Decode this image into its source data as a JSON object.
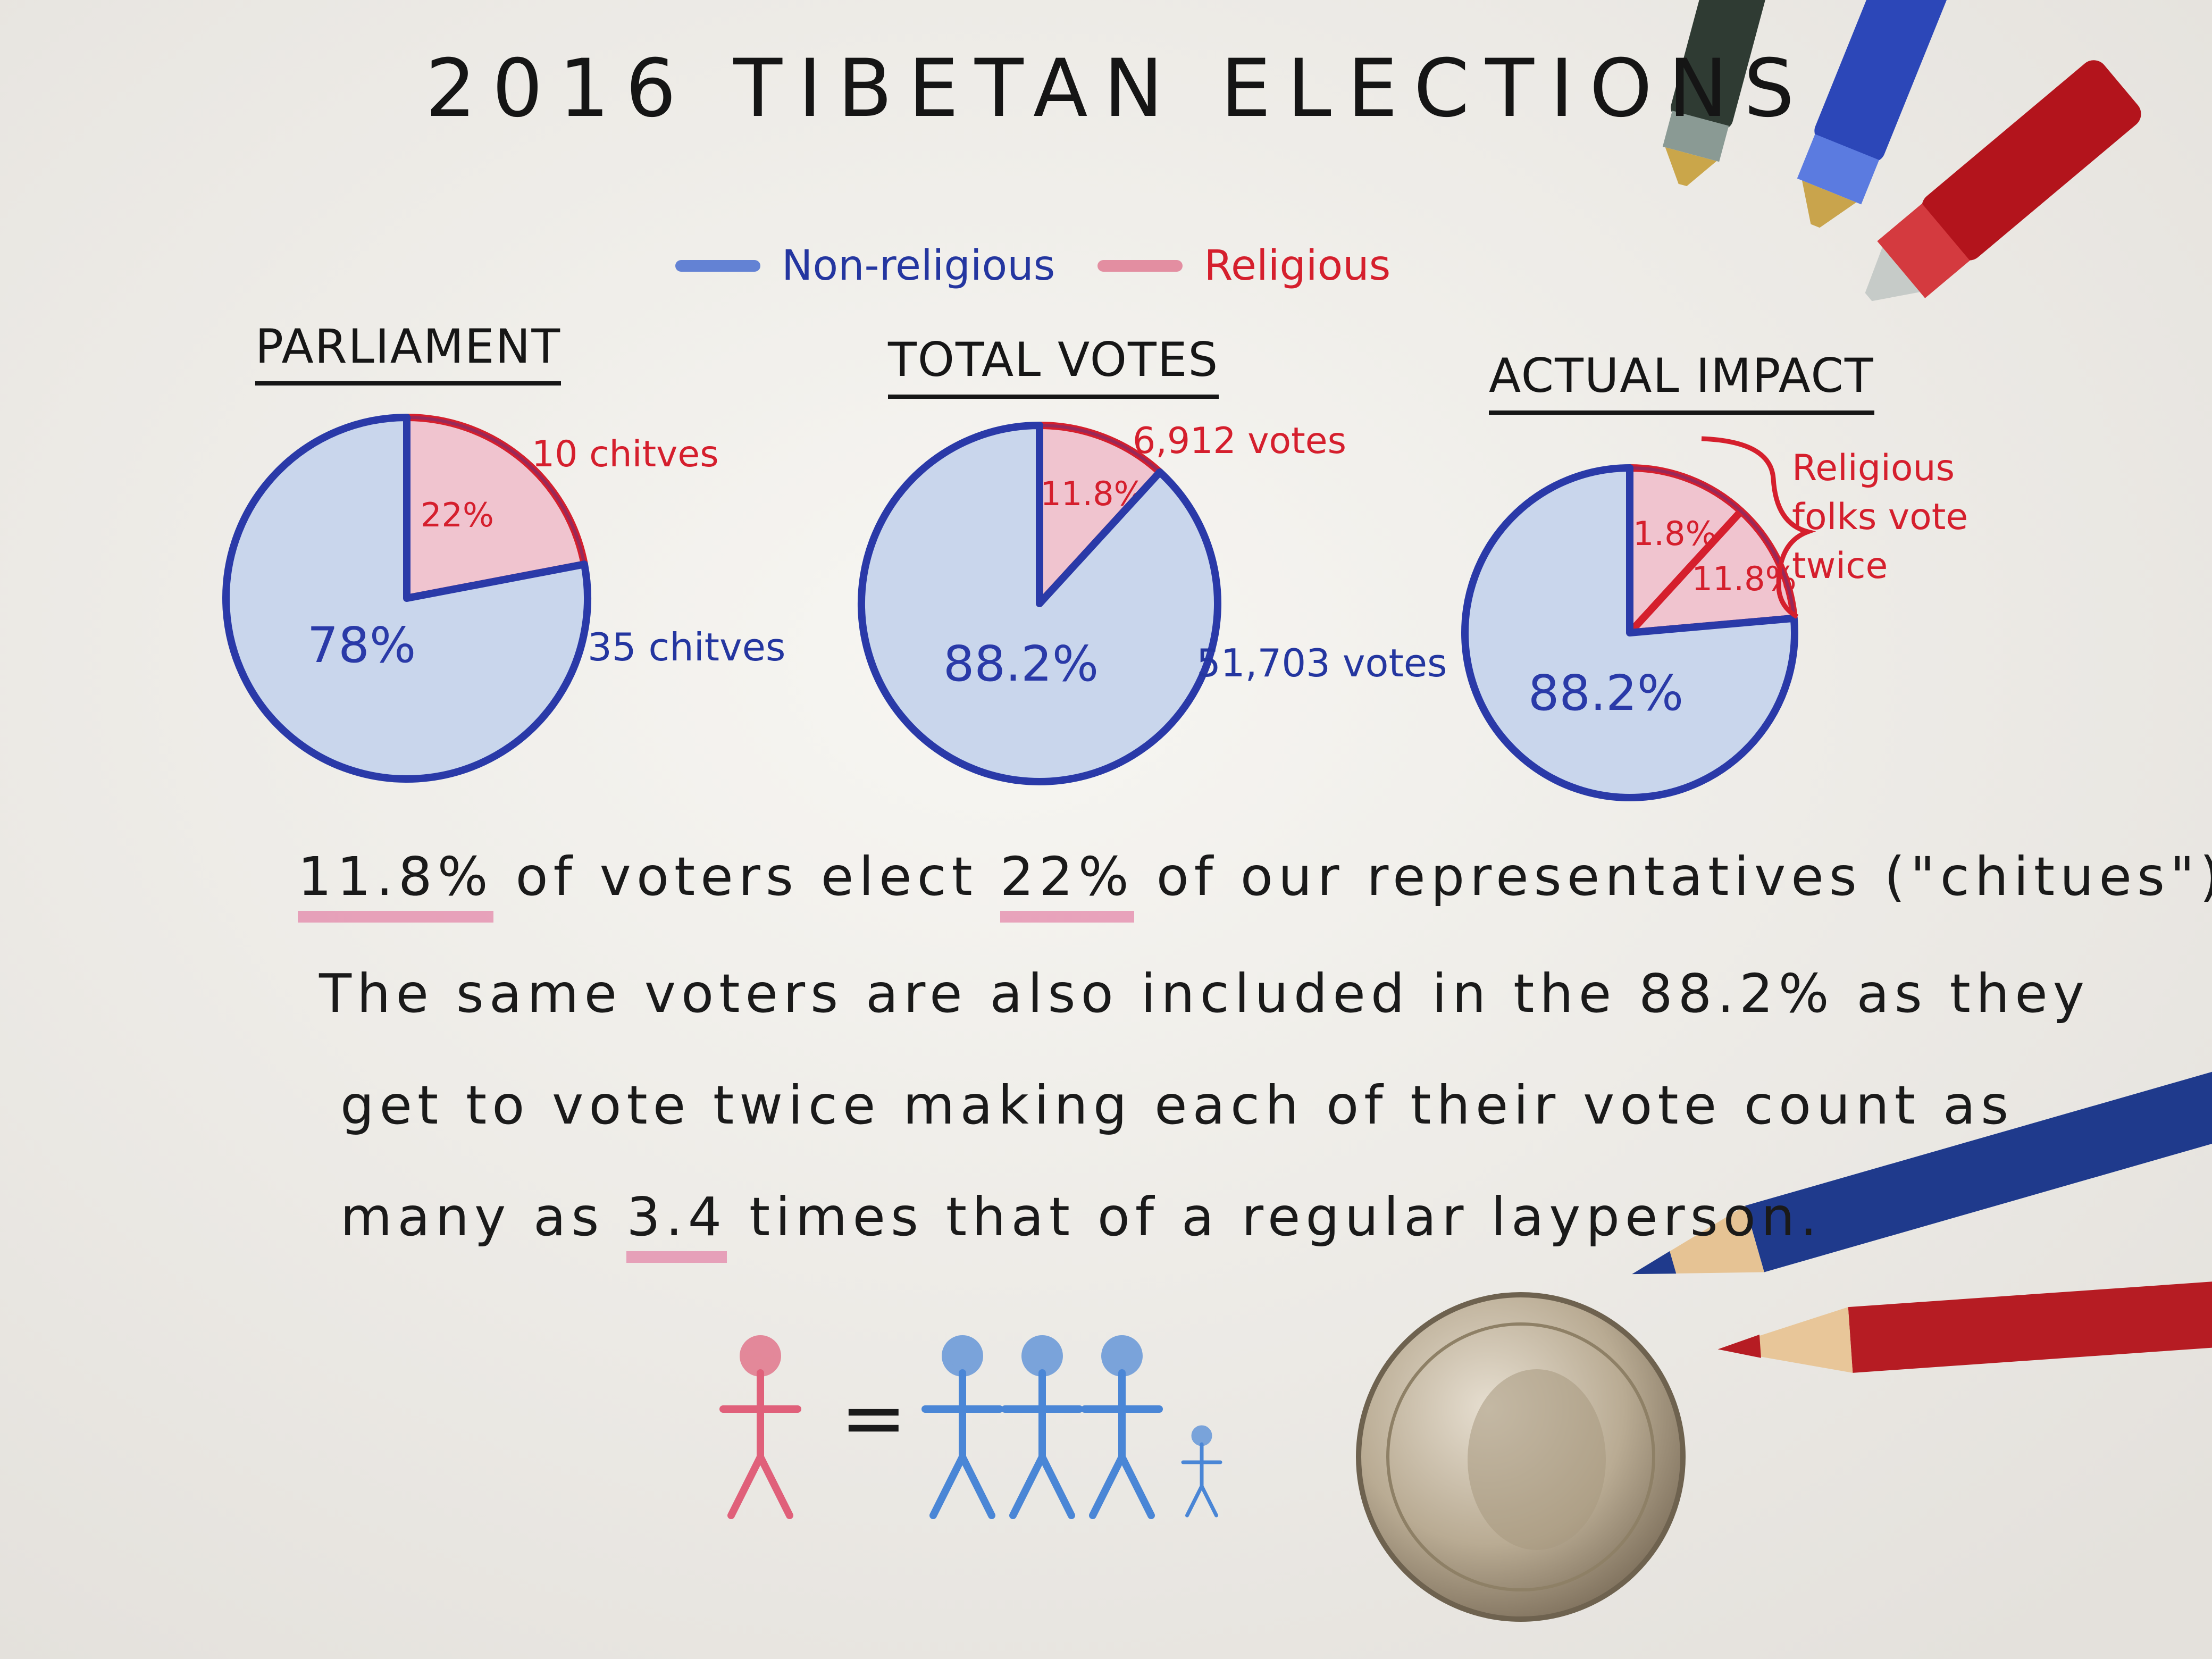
{
  "title": "2016 TIBETAN ELECTIONS",
  "legend": {
    "non_religious": "Non-religious",
    "religious": "Religious"
  },
  "colors": {
    "non_religious": "#2a3aa8",
    "non_religious_fill": "#c9d6ec",
    "religious": "#d51f2d",
    "religious_fill": "#f0c4cf",
    "highlight": "#e278a0"
  },
  "chart_data": [
    {
      "type": "pie",
      "title": "PARLIAMENT",
      "series": [
        {
          "name": "Religious",
          "value": 22,
          "label": "22%",
          "annotation": "10 chitves"
        },
        {
          "name": "Non-religious",
          "value": 78,
          "label": "78%",
          "annotation": "35 chitves"
        }
      ]
    },
    {
      "type": "pie",
      "title": "TOTAL VOTES",
      "series": [
        {
          "name": "Religious",
          "value": 11.8,
          "label": "11.8%",
          "annotation": "6,912 votes"
        },
        {
          "name": "Non-religious",
          "value": 88.2,
          "label": "88.2%",
          "annotation": "51,703 votes"
        }
      ]
    },
    {
      "type": "pie",
      "title": "ACTUAL IMPACT",
      "series": [
        {
          "name": "Religious",
          "value": 11.8,
          "label": "11.8%"
        },
        {
          "name": "Religious",
          "value": 11.8,
          "label": "11.8%"
        },
        {
          "name": "Non-religious",
          "value": 88.2,
          "label": "88.2%"
        }
      ],
      "annotation": "Religious folks vote twice"
    }
  ],
  "body": {
    "line1": {
      "h1": "11.8%",
      "t1": " of voters elect ",
      "h2": "22%",
      "t2": " of our representatives (\"chitues\")."
    },
    "line2": "The same voters are also included in the 88.2% as they",
    "line3": "get to vote twice making each of their vote count as",
    "line4": {
      "t1": "many as ",
      "h1": "3.4",
      "t2": " times that of a regular layperson."
    }
  },
  "equation": {
    "symbol": "=",
    "religious_people": 1,
    "lay_people": 3.4
  }
}
